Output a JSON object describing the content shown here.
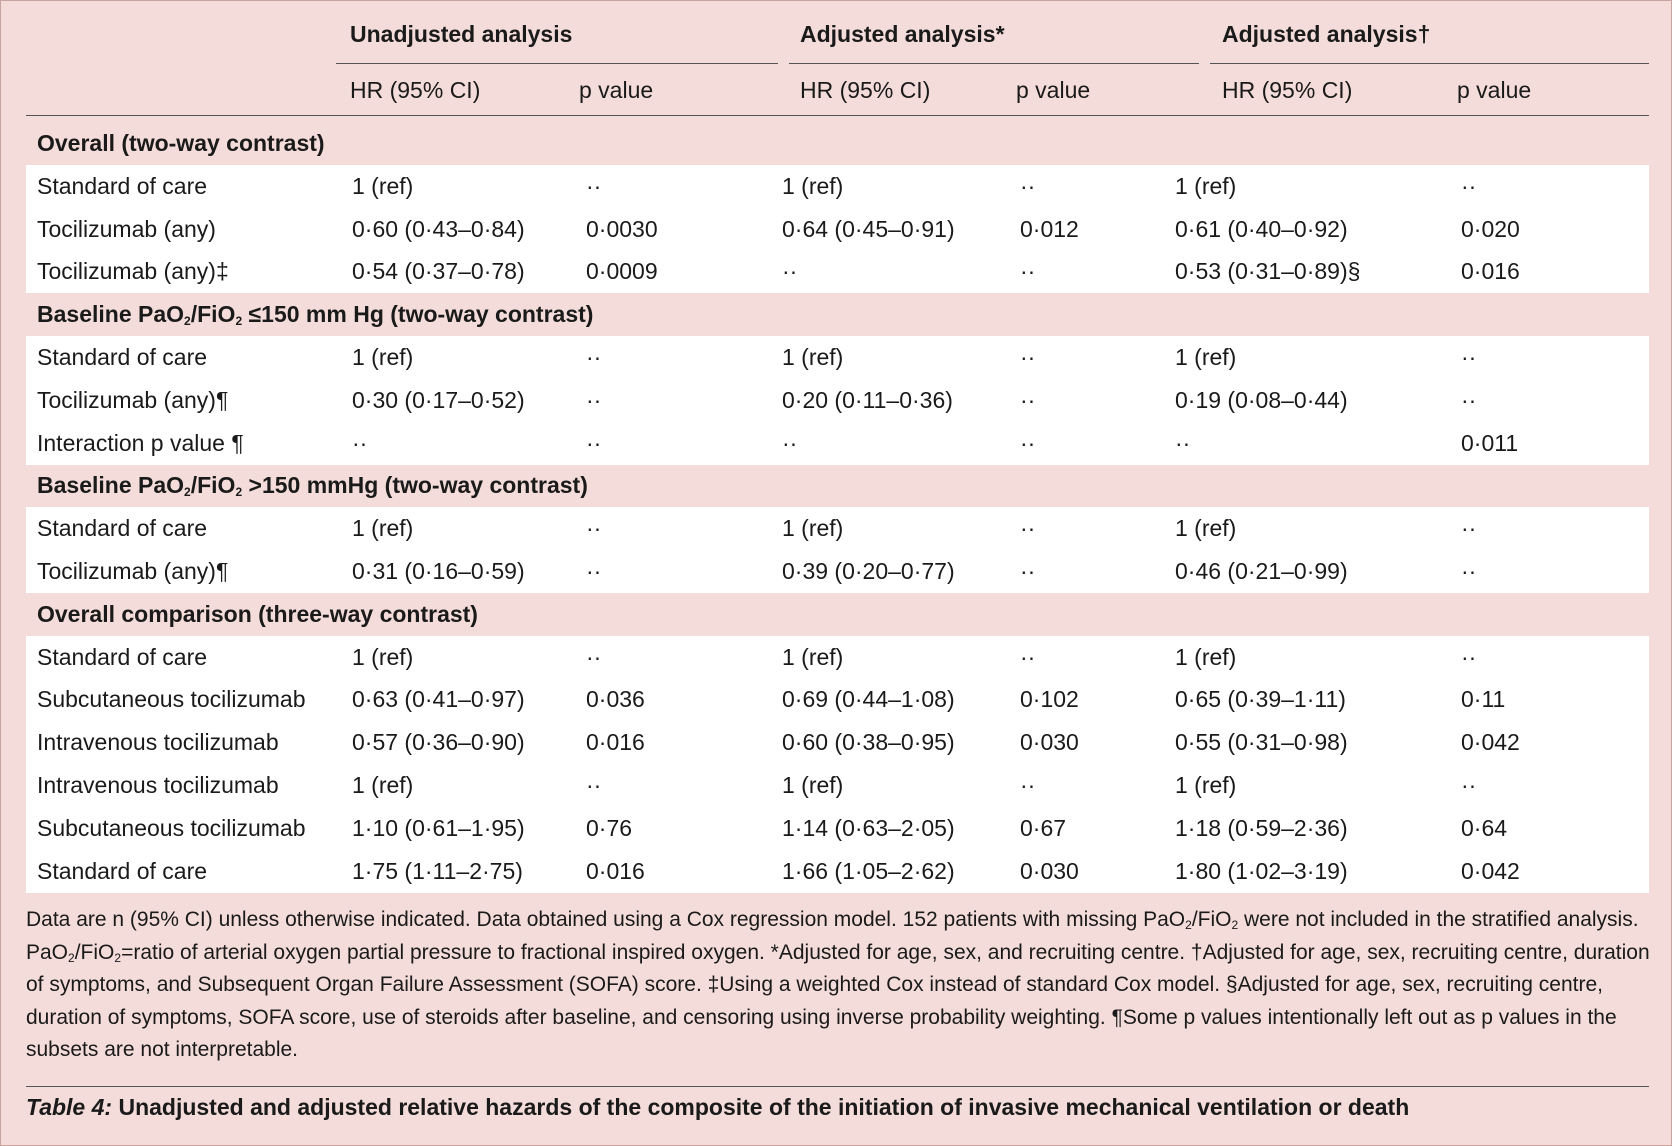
{
  "header": {
    "groups": [
      "Unadjusted analysis",
      "Adjusted analysis*",
      "Adjusted analysis†"
    ],
    "subheaders": [
      "HR (95% CI)",
      "p value",
      "HR (95% CI)",
      "p value",
      "HR (95% CI)",
      "p value"
    ]
  },
  "rows": [
    {
      "type": "section",
      "text": "Overall (two-way contrast)"
    },
    {
      "type": "data",
      "cells": [
        "Standard of care",
        "1 (ref)",
        "··",
        "1 (ref)",
        "··",
        "1 (ref)",
        "··"
      ]
    },
    {
      "type": "data",
      "cells": [
        "Tocilizumab (any)",
        "0·60 (0·43–0·84)",
        "0·0030",
        "0·64 (0·45–0·91)",
        "0·012",
        "0·61 (0·40–0·92)",
        "0·020"
      ]
    },
    {
      "type": "data",
      "cells": [
        "Tocilizumab (any)‡",
        "0·54 (0·37–0·78)",
        "0·0009",
        "··",
        "··",
        "0·53 (0·31–0·89)§",
        "0·016"
      ]
    },
    {
      "type": "section",
      "pre": "Baseline PaO",
      "s1": "2",
      "mid": "/FiO",
      "s2": "2",
      "post": " ≤150 mm Hg (two-way contrast)"
    },
    {
      "type": "data",
      "cells": [
        "Standard of care",
        "1 (ref)",
        "··",
        "1 (ref)",
        "··",
        "1 (ref)",
        "··"
      ]
    },
    {
      "type": "data",
      "cells": [
        "Tocilizumab (any)¶",
        "0·30 (0·17–0·52)",
        "··",
        "0·20 (0·11–0·36)",
        "··",
        "0·19 (0·08–0·44)",
        "··"
      ]
    },
    {
      "type": "data",
      "cells": [
        "Interaction p value ¶",
        "··",
        "··",
        "··",
        "··",
        "··",
        "0·011"
      ]
    },
    {
      "type": "section",
      "pre": "Baseline PaO",
      "s1": "2",
      "mid": "/FiO",
      "s2": "2",
      "post": " >150 mmHg (two-way contrast)"
    },
    {
      "type": "data",
      "cells": [
        "Standard of care",
        "1 (ref)",
        "··",
        "1 (ref)",
        "··",
        "1 (ref)",
        "··"
      ]
    },
    {
      "type": "data",
      "cells": [
        "Tocilizumab (any)¶",
        "0·31 (0·16–0·59)",
        "··",
        "0·39 (0·20–0·77)",
        "··",
        "0·46 (0·21–0·99)",
        "··"
      ]
    },
    {
      "type": "section",
      "text": "Overall comparison (three-way contrast)"
    },
    {
      "type": "data",
      "cells": [
        "Standard of care",
        "1 (ref)",
        "··",
        "1 (ref)",
        "··",
        "1 (ref)",
        "··"
      ]
    },
    {
      "type": "data",
      "cells": [
        "Subcutaneous tocilizumab",
        "0·63 (0·41–0·97)",
        "0·036",
        "0·69 (0·44–1·08)",
        "0·102",
        "0·65 (0·39–1·11)",
        "0·11"
      ]
    },
    {
      "type": "data",
      "cells": [
        "Intravenous tocilizumab",
        "0·57 (0·36–0·90)",
        "0·016",
        "0·60 (0·38–0·95)",
        "0·030",
        "0·55 (0·31–0·98)",
        "0·042"
      ]
    },
    {
      "type": "data",
      "cells": [
        "Intravenous tocilizumab",
        "1 (ref)",
        "··",
        "1 (ref)",
        "··",
        "1 (ref)",
        "··"
      ]
    },
    {
      "type": "data",
      "cells": [
        "Subcutaneous tocilizumab",
        "1·10 (0·61–1·95)",
        "0·76",
        "1·14 (0·63–2·05)",
        "0·67",
        "1·18 (0·59–2·36)",
        "0·64"
      ]
    },
    {
      "type": "data",
      "cells": [
        "Standard of care",
        "1·75 (1·11–2·75)",
        "0·016",
        "1·66 (1·05–2·62)",
        "0·030",
        "1·80 (1·02–3·19)",
        "0·042"
      ]
    }
  ],
  "footnote": {
    "p1": "Data are n (95% CI) unless otherwise indicated. Data obtained using a Cox regression model. 152 patients with missing PaO",
    "s1": "2",
    "p2": "/FiO",
    "s2": "2",
    "p3": " were not included in the stratified analysis. PaO",
    "s3": "2",
    "p4": "/FiO",
    "s4": "2",
    "p5": "=ratio of arterial oxygen partial pressure to fractional inspired oxygen. *Adjusted for age, sex, and recruiting centre. †Adjusted for age, sex, recruiting centre, duration of symptoms, and Subsequent Organ Failure Assessment (SOFA) score. ‡Using a weighted Cox instead of standard Cox model. §Adjusted for age, sex, recruiting centre, duration of symptoms, SOFA score, use of steroids after baseline, and censoring using inverse probability weighting. ¶Some p values intentionally left out as p values in the subsets are not interpretable."
  },
  "caption": {
    "label": "Table 4:",
    "text": " Unadjusted and adjusted relative hazards of the composite of the initiation of invasive mechanical ventilation or death"
  }
}
